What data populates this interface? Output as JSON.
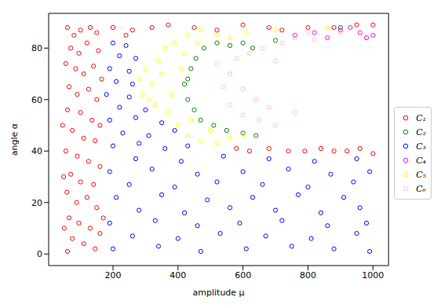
{
  "chart_data": {
    "type": "scatter",
    "x_label": "amplitude μ",
    "y_label": "angle α",
    "xlim": [
      2,
      1048
    ],
    "ylim": [
      -4.5,
      93.5
    ],
    "xticks": [
      200,
      400,
      600,
      800,
      1000
    ],
    "yticks": [
      0,
      20,
      40,
      60,
      80
    ],
    "grid": false,
    "legend": "right",
    "marker": "circle",
    "series": [
      {
        "name": "C₁",
        "color": "#ff0000",
        "x": [
          60,
          80,
          100,
          130,
          150,
          70,
          95,
          120,
          155,
          55,
          85,
          110,
          140,
          165,
          65,
          90,
          125,
          150,
          60,
          100,
          135,
          160,
          75,
          110,
          145,
          55,
          90,
          125,
          160,
          70,
          100,
          140,
          58,
          88,
          120,
          150,
          65,
          95,
          130,
          160,
          75,
          110,
          145,
          60,
          170,
          45,
          48,
          50,
          200,
          260,
          320,
          370,
          450,
          520,
          600,
          680,
          720,
          800,
          880,
          950,
          1000,
          240,
          580,
          620,
          680,
          740,
          790,
          840,
          880,
          920,
          960,
          1000
        ],
        "y": [
          88,
          85,
          87,
          88,
          86,
          80,
          78,
          82,
          79,
          74,
          72,
          70,
          73,
          68,
          65,
          62,
          64,
          60,
          56,
          55,
          52,
          50,
          48,
          45,
          44,
          40,
          38,
          36,
          34,
          31,
          28,
          27,
          24,
          20,
          22,
          18,
          14,
          12,
          10,
          8,
          6,
          4,
          2,
          1,
          14,
          50,
          30,
          10,
          88,
          87,
          88,
          89,
          88,
          87,
          89,
          88,
          87,
          88,
          88,
          89,
          89,
          85,
          41,
          40,
          41,
          40,
          40,
          41,
          40,
          40,
          41,
          39
        ]
      },
      {
        "name": "C₂",
        "color": "#008000",
        "x": [
          420,
          430,
          440,
          455,
          480,
          520,
          560,
          600,
          630,
          450,
          470,
          510,
          550,
          600,
          640,
          430,
          700,
          900
        ],
        "y": [
          66,
          60,
          72,
          76,
          80,
          82,
          81,
          82,
          80,
          56,
          52,
          50,
          48,
          47,
          46,
          68,
          83,
          88
        ]
      },
      {
        "name": "C₃",
        "color": "#0000ff",
        "x": [
          200,
          340,
          470,
          610,
          750,
          880,
          990,
          260,
          400,
          530,
          670,
          810,
          950,
          190,
          330,
          460,
          590,
          720,
          860,
          980,
          280,
          420,
          560,
          700,
          840,
          960,
          210,
          350,
          490,
          630,
          770,
          910,
          250,
          390,
          520,
          660,
          800,
          940,
          190,
          320,
          460,
          600,
          740,
          870,
          990,
          270,
          410,
          540,
          680,
          820,
          950,
          200,
          280,
          360,
          430,
          230,
          310,
          390,
          190,
          270,
          350,
          220,
          300,
          180,
          250,
          210,
          260,
          190,
          250,
          220,
          270,
          200,
          240
        ],
        "y": [
          2,
          3,
          1,
          2,
          3,
          2,
          1,
          7,
          6,
          8,
          7,
          6,
          8,
          12,
          13,
          11,
          12,
          13,
          11,
          12,
          17,
          16,
          18,
          17,
          16,
          18,
          22,
          23,
          21,
          22,
          23,
          22,
          27,
          26,
          28,
          27,
          26,
          28,
          32,
          33,
          31,
          32,
          33,
          31,
          32,
          37,
          36,
          38,
          37,
          36,
          37,
          42,
          43,
          41,
          42,
          47,
          46,
          48,
          52,
          53,
          51,
          57,
          56,
          62,
          61,
          67,
          66,
          72,
          71,
          77,
          76,
          82,
          81
        ]
      },
      {
        "name": "C₄",
        "color": "#ff00ff",
        "x": [
          760,
          820,
          860,
          900,
          960,
          1000,
          930,
          980
        ],
        "y": [
          85,
          86,
          84,
          87,
          86,
          85,
          88,
          84
        ]
      },
      {
        "name": "C₅",
        "color": "#ffff00",
        "x": [
          300,
          320,
          290,
          340,
          360,
          330,
          280,
          370,
          400,
          430,
          470,
          520,
          560,
          600,
          390,
          430,
          470,
          520,
          560,
          610,
          350,
          380,
          420,
          460,
          310,
          500,
          440,
          410,
          860,
          700
        ],
        "y": [
          72,
          66,
          62,
          75,
          80,
          58,
          68,
          55,
          50,
          46,
          44,
          43,
          45,
          46,
          82,
          85,
          87,
          85,
          84,
          86,
          70,
          62,
          78,
          82,
          60,
          48,
          52,
          72,
          88,
          87
        ]
      },
      {
        "name": "C₆",
        "color": "#ffc0cb",
        "x": [
          520,
          540,
          560,
          600,
          650,
          700,
          580,
          620,
          660,
          720,
          760,
          800,
          560,
          600,
          640,
          680,
          760,
          820,
          900,
          700
        ],
        "y": [
          74,
          65,
          58,
          54,
          52,
          50,
          76,
          78,
          80,
          82,
          84,
          86,
          70,
          64,
          60,
          57,
          55,
          83,
          86,
          75
        ]
      }
    ]
  }
}
